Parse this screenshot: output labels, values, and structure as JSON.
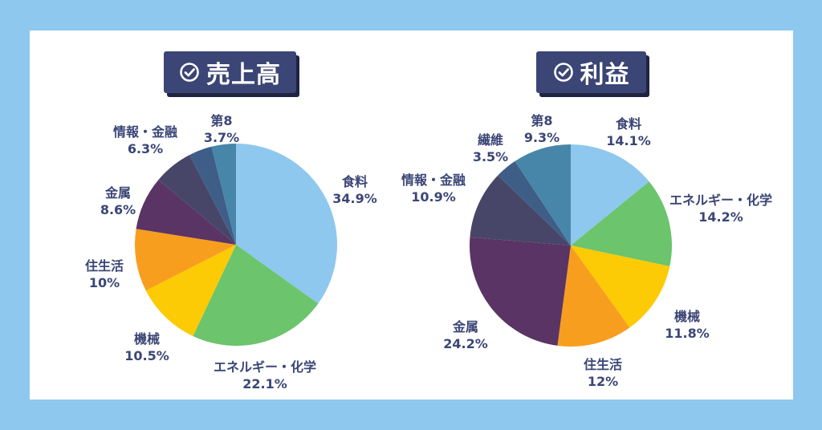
{
  "colors": {
    "background": "#8ec8ee",
    "card": "#ffffff",
    "badge": "#3b4676",
    "label": "#3b4676"
  },
  "titles": {
    "left": "売上高",
    "right": "利益"
  },
  "icon": "check-circle-icon",
  "chart_data": [
    {
      "type": "pie",
      "title": "売上高",
      "start_angle": "12 o'clock",
      "direction": "clockwise",
      "slices": [
        {
          "label": "食料",
          "value_label": "34.9%",
          "value": 34.9,
          "color": "#8ec8ee"
        },
        {
          "label": "エネルギー・化学",
          "value_label": "22.1%",
          "value": 22.1,
          "color": "#6cc46c"
        },
        {
          "label": "機械",
          "value_label": "10.5%",
          "value": 10.5,
          "color": "#fccb05"
        },
        {
          "label": "住生活",
          "value_label": "10%",
          "value": 10.0,
          "color": "#f89e1e"
        },
        {
          "label": "金属",
          "value_label": "8.6%",
          "value": 8.6,
          "color": "#5a3464"
        },
        {
          "label": "情報・金融",
          "value_label": "6.3%",
          "value": 6.3,
          "color": "#474668"
        },
        {
          "label": "第8",
          "value_label": "3.7%",
          "value": 3.7,
          "color": "#3e5e87"
        },
        {
          "label": "",
          "value_label": "",
          "value": 3.9,
          "color": "#4886a9"
        }
      ]
    },
    {
      "type": "pie",
      "title": "利益",
      "start_angle": "12 o'clock",
      "direction": "clockwise",
      "slices": [
        {
          "label": "食料",
          "value_label": "14.1%",
          "value": 14.1,
          "color": "#8ec8ee"
        },
        {
          "label": "エネルギー・化学",
          "value_label": "14.2%",
          "value": 14.2,
          "color": "#6cc46c"
        },
        {
          "label": "機械",
          "value_label": "11.8%",
          "value": 11.8,
          "color": "#fccb05"
        },
        {
          "label": "住生活",
          "value_label": "12%",
          "value": 12.0,
          "color": "#f89e1e"
        },
        {
          "label": "金属",
          "value_label": "24.2%",
          "value": 24.2,
          "color": "#5a3464"
        },
        {
          "label": "情報・金融",
          "value_label": "10.9%",
          "value": 10.9,
          "color": "#474668"
        },
        {
          "label": "繊維",
          "value_label": "3.5%",
          "value": 3.5,
          "color": "#3e5e87"
        },
        {
          "label": "第8",
          "value_label": "9.3%",
          "value": 9.3,
          "color": "#4886a9"
        }
      ]
    }
  ]
}
